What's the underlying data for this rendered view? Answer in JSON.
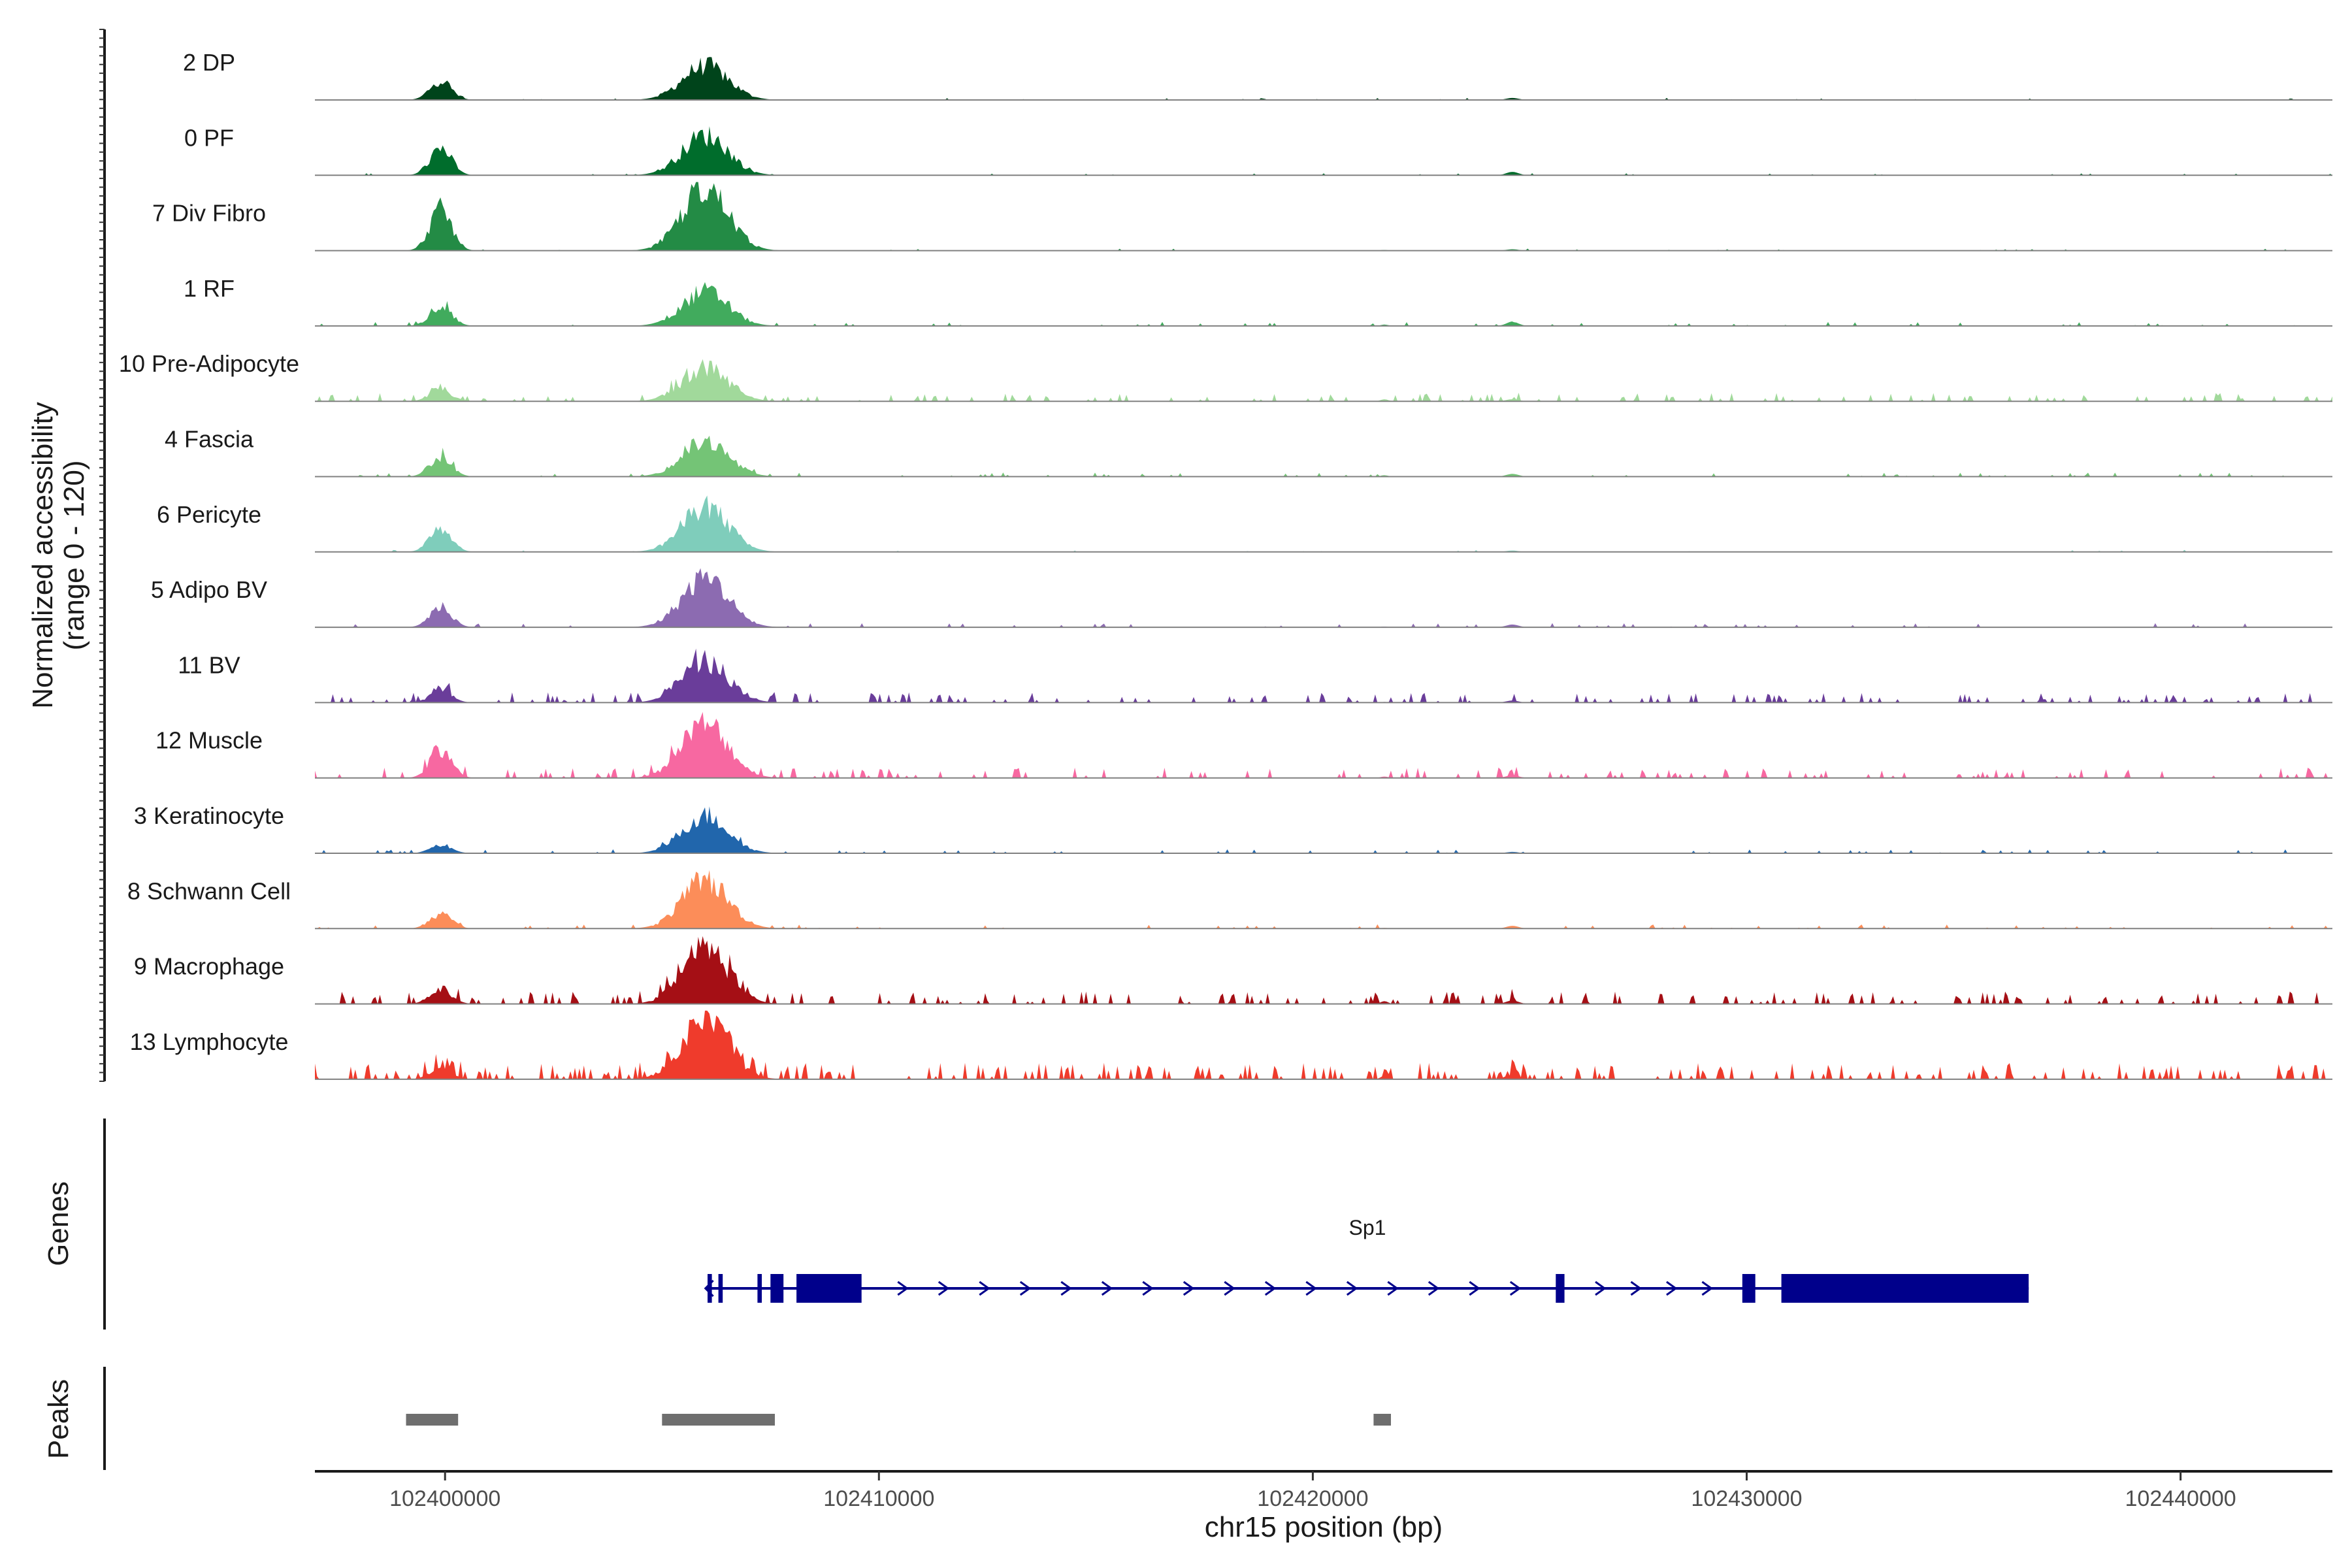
{
  "chart_data": {
    "type": "area",
    "title": "",
    "region": "chr15",
    "xlabel": "chr15 position (bp)",
    "ylabel": "Normalized accessibility",
    "ylabel_range": "(range 0 - 120)",
    "ylim": [
      0,
      120
    ],
    "xlim": [
      102397000,
      102443500
    ],
    "x_ticks": [
      102400000,
      102410000,
      102420000,
      102430000,
      102440000
    ],
    "x_tick_labels": [
      "102400000",
      "102410000",
      "102420000",
      "102430000",
      "102440000"
    ],
    "cell_types": [
      {
        "name": "2 DP",
        "color": "#00441b"
      },
      {
        "name": "0 PF",
        "color": "#006d2c"
      },
      {
        "name": "7 Div Fibro",
        "color": "#238b45"
      },
      {
        "name": "1 RF",
        "color": "#41ab5d"
      },
      {
        "name": "10 Pre-Adipocyte",
        "color": "#a1d99b"
      },
      {
        "name": "4 Fascia",
        "color": "#74c476"
      },
      {
        "name": "6 Pericyte",
        "color": "#7fcdbb"
      },
      {
        "name": "5 Adipo BV",
        "color": "#8c6bb1"
      },
      {
        "name": "11 BV",
        "color": "#6a3d9a"
      },
      {
        "name": "12 Muscle",
        "color": "#f768a1"
      },
      {
        "name": "3 Keratinocyte",
        "color": "#2166ac"
      },
      {
        "name": "8 Schwann Cell",
        "color": "#fc8d59"
      },
      {
        "name": "9 Macrophage",
        "color": "#a50f15"
      },
      {
        "name": "13 Lymphocyte",
        "color": "#ef3b2c"
      }
    ],
    "peak_heights": [
      [
        0.28,
        0.5,
        0.0,
        0.03
      ],
      [
        0.4,
        0.58,
        0.0,
        0.05
      ],
      [
        0.6,
        0.9,
        0.01,
        0.02
      ],
      [
        0.3,
        0.5,
        0.02,
        0.06
      ],
      [
        0.18,
        0.48,
        0.03,
        0.03
      ],
      [
        0.3,
        0.5,
        0.02,
        0.04
      ],
      [
        0.35,
        0.65,
        0.0,
        0.02
      ],
      [
        0.3,
        0.72,
        0.01,
        0.04
      ],
      [
        0.18,
        0.6,
        0.01,
        0.03
      ],
      [
        0.4,
        0.78,
        0.02,
        0.04
      ],
      [
        0.12,
        0.55,
        0.01,
        0.02
      ],
      [
        0.22,
        0.7,
        0.01,
        0.04
      ],
      [
        0.22,
        0.82,
        0.04,
        0.05
      ],
      [
        0.16,
        0.88,
        0.05,
        0.08
      ]
    ],
    "noise_level": [
      0.01,
      0.01,
      0.01,
      0.02,
      0.04,
      0.02,
      0.01,
      0.02,
      0.05,
      0.05,
      0.02,
      0.02,
      0.06,
      0.08
    ],
    "genes_track_label": "Genes",
    "gene": {
      "name": "Sp1",
      "strand": "+",
      "start": 102406000,
      "end": 102436500,
      "color": "#00008b",
      "exons": [
        [
          102406050,
          102406150
        ],
        [
          102406300,
          102406400
        ],
        [
          102407200,
          102407300
        ],
        [
          102407500,
          102407800
        ],
        [
          102408100,
          102409600
        ],
        [
          102425600,
          102425800
        ],
        [
          102429900,
          102430200
        ],
        [
          102430800,
          102436500
        ]
      ]
    },
    "peaks_track_label": "Peaks",
    "peaks": [
      [
        102399100,
        102400300
      ],
      [
        102405000,
        102407600
      ],
      [
        102421400,
        102421800
      ]
    ],
    "peak_color": "#6e6e6e"
  }
}
